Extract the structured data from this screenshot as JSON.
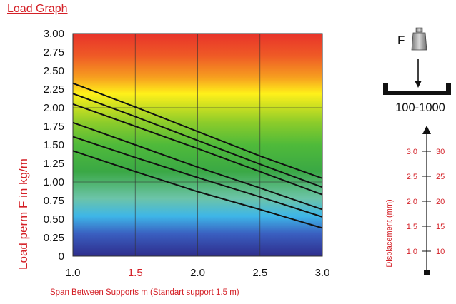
{
  "page_title": "Load Graph",
  "chart_data": {
    "type": "line",
    "ylabel": "Load perm F in kg/m",
    "xlabel": "Span Between Supports m (Standart support 1.5 m)",
    "xlim": [
      1.0,
      3.0
    ],
    "ylim": [
      0,
      3.0
    ],
    "x_ticks": [
      "1.0",
      "1.5",
      "2.0",
      "2.5",
      "3.0"
    ],
    "x_highlight_tick": "1.5",
    "y_ticks": [
      "0",
      "0.25",
      "0.50",
      "0.75",
      "1.00",
      "1.25",
      "1.50",
      "1.75",
      "2.00",
      "2.25",
      "2.50",
      "2.75",
      "3.00"
    ],
    "grid": true,
    "background_gradient": [
      "#e8332a",
      "#f7a11f",
      "#fff01a",
      "#4fba3a",
      "#3aa845",
      "#6cc4a8",
      "#3eb6e8",
      "#3a5fc0",
      "#2e2d8c"
    ],
    "line_color": "#111111",
    "series": [
      {
        "x": [
          1.0,
          1.5,
          2.0,
          2.5,
          3.0
        ],
        "values": [
          2.33,
          2.01,
          1.68,
          1.35,
          1.05
        ]
      },
      {
        "x": [
          1.0,
          1.5,
          2.0,
          2.5,
          3.0
        ],
        "values": [
          2.19,
          1.88,
          1.56,
          1.24,
          0.93
        ]
      },
      {
        "x": [
          1.0,
          1.5,
          2.0,
          2.5,
          3.0
        ],
        "values": [
          2.05,
          1.75,
          1.45,
          1.14,
          0.83
        ]
      },
      {
        "x": [
          1.0,
          1.5,
          2.0,
          2.5,
          3.0
        ],
        "values": [
          1.8,
          1.5,
          1.2,
          0.92,
          0.63
        ]
      },
      {
        "x": [
          1.0,
          1.5,
          2.0,
          2.5,
          3.0
        ],
        "values": [
          1.61,
          1.33,
          1.06,
          0.8,
          0.53
        ]
      },
      {
        "x": [
          1.0,
          1.5,
          2.0,
          2.5,
          3.0
        ],
        "values": [
          1.42,
          1.14,
          0.87,
          0.63,
          0.38
        ]
      }
    ]
  },
  "diagram": {
    "force_label": "F",
    "range_label": "100-1000",
    "weight_icon": "weight-icon",
    "arrow_icon": "arrow-down-icon",
    "channel_icon": "u-channel-icon"
  },
  "displacement_scale": {
    "label": "Displacement (mm)",
    "left_ticks": [
      "3.0",
      "2.5",
      "2.0",
      "1.5",
      "1.0"
    ],
    "right_ticks": [
      "30",
      "25",
      "20",
      "15",
      "10"
    ]
  }
}
